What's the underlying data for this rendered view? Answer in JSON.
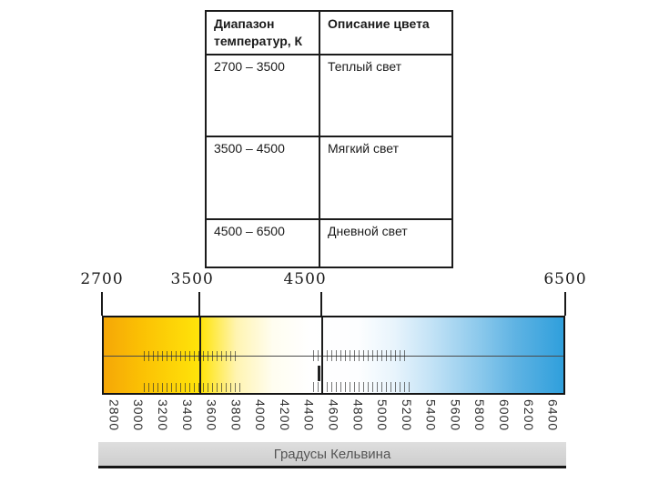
{
  "table": {
    "headers": [
      "Диапазон температур, К",
      "Описание цвета"
    ],
    "rows": [
      {
        "range": "2700 – 3500",
        "description": "Теплый свет"
      },
      {
        "range": "3500 – 4500",
        "description": "Мягкий свет"
      },
      {
        "range": "4500 – 6500",
        "description": "Дневной свет"
      }
    ]
  },
  "scale": {
    "min_k": 2700,
    "max_k": 6500,
    "top_labels": [
      "2700",
      "3500",
      "4500",
      "6500"
    ],
    "divider_k": [
      3500,
      4500
    ],
    "bottom_labels": [
      "2800",
      "3000",
      "3200",
      "3400",
      "3600",
      "3800",
      "4000",
      "4200",
      "4400",
      "4600",
      "4800",
      "5000",
      "5200",
      "5400",
      "5600",
      "5800",
      "6000",
      "6200",
      "6400"
    ],
    "footer_label": "Градусы Кельвина",
    "gradient": [
      {
        "k": 2700,
        "color": "#F5A707"
      },
      {
        "k": 3000,
        "color": "#FBC004"
      },
      {
        "k": 3500,
        "color": "#FFE40A"
      },
      {
        "k": 3800,
        "color": "#FFF4B2"
      },
      {
        "k": 4100,
        "color": "#FFFDF0"
      },
      {
        "k": 4400,
        "color": "#FFFFFF"
      },
      {
        "k": 4800,
        "color": "#FDFEFF"
      },
      {
        "k": 5100,
        "color": "#E8F4FC"
      },
      {
        "k": 5400,
        "color": "#C4E3F6"
      },
      {
        "k": 5800,
        "color": "#8CC9EC"
      },
      {
        "k": 6100,
        "color": "#5FB3E3"
      },
      {
        "k": 6500,
        "color": "#2F9FDC"
      }
    ]
  }
}
